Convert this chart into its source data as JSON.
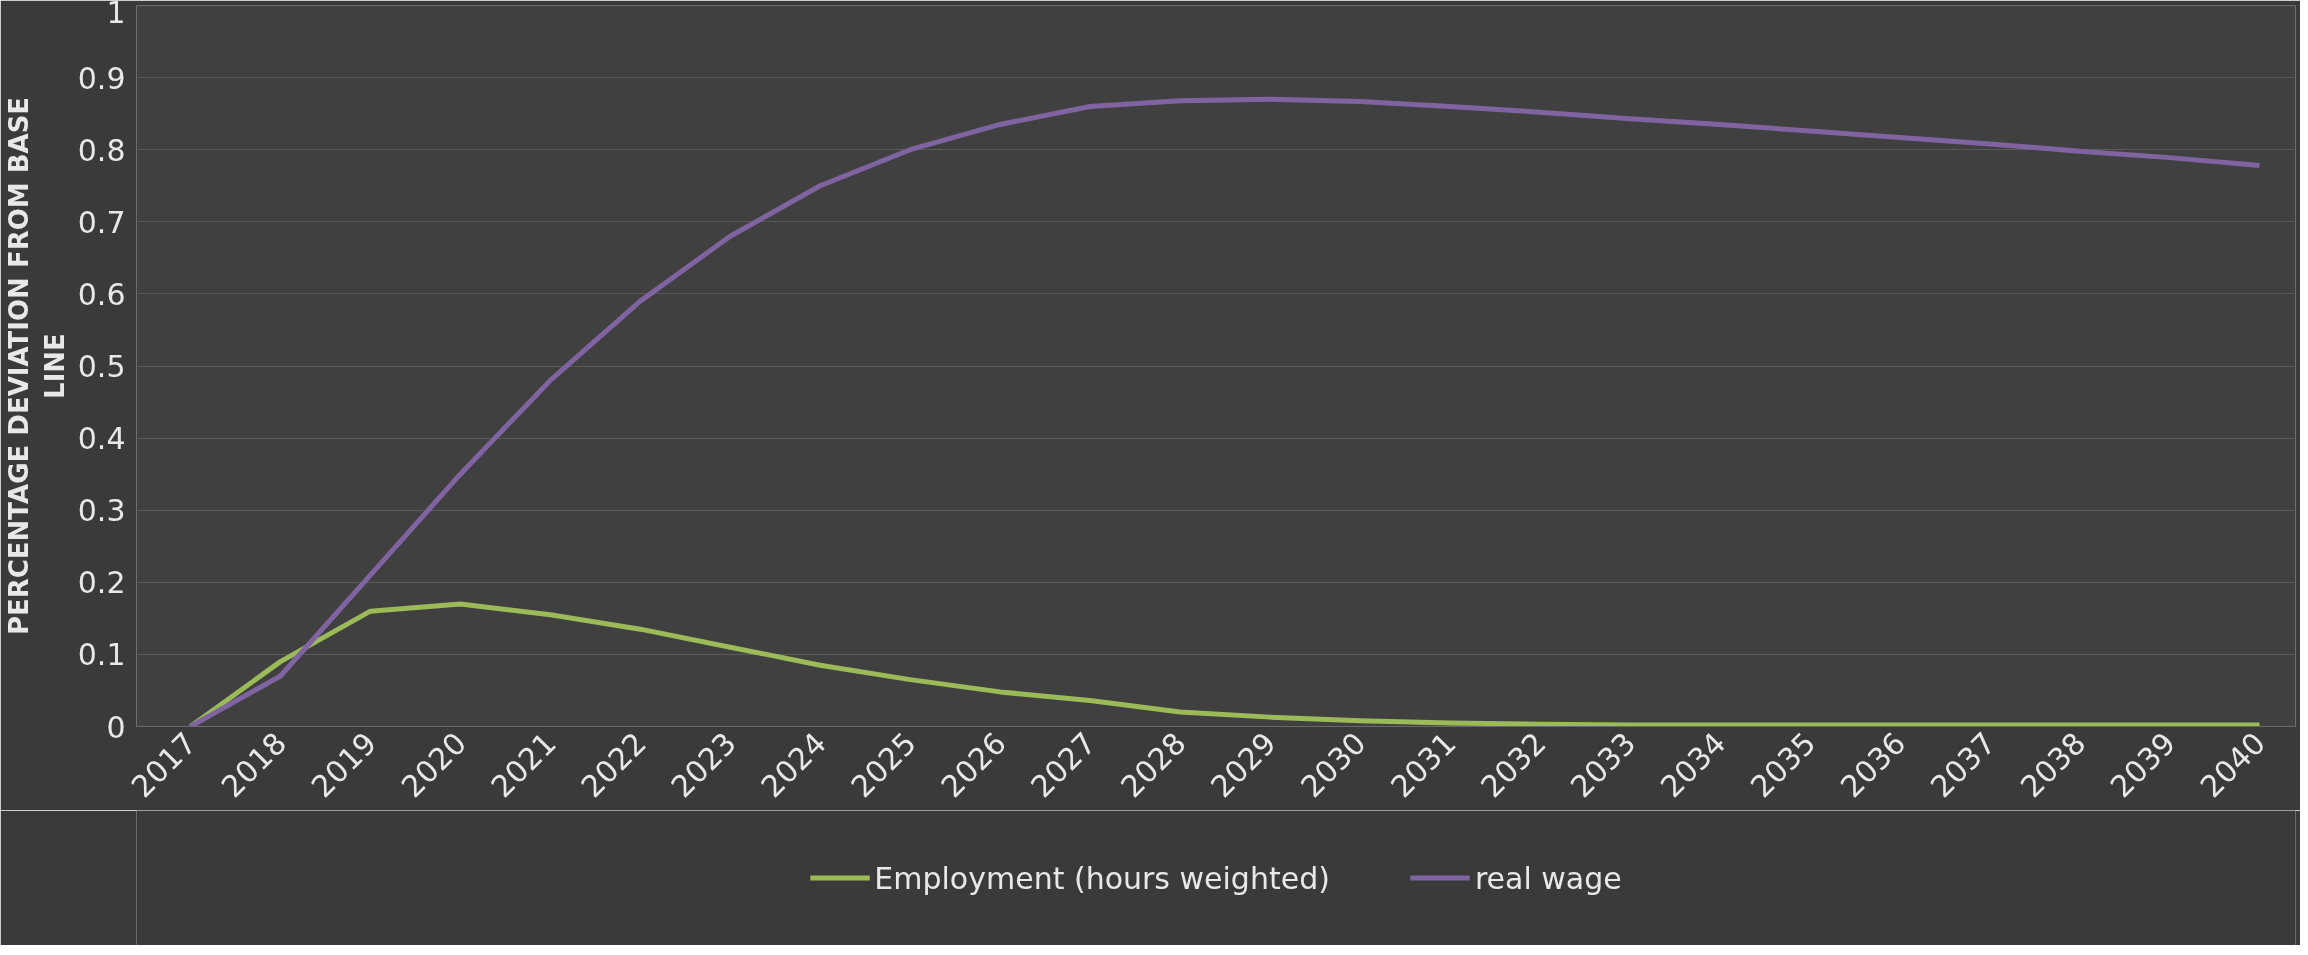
{
  "chart_data": {
    "type": "line",
    "ylabel": "PERCENTAGE DEVIATION FROM BASE LINE",
    "categories": [
      "2017",
      "2018",
      "2019",
      "2020",
      "2021",
      "2022",
      "2023",
      "2024",
      "2025",
      "2026",
      "2027",
      "2028",
      "2029",
      "2030",
      "2031",
      "2032",
      "2033",
      "2034",
      "2035",
      "2036",
      "2037",
      "2038",
      "2039",
      "2040"
    ],
    "series": [
      {
        "name": "Employment (hours weighted)",
        "color": "#9bbb59",
        "values": [
          0,
          0.09,
          0.16,
          0.17,
          0.155,
          0.135,
          0.11,
          0.085,
          0.065,
          0.048,
          0.036,
          0.02,
          0.013,
          0.008,
          0.005,
          0.003,
          0.002,
          0.002,
          0.002,
          0.002,
          0.002,
          0.002,
          0.002,
          0.002
        ]
      },
      {
        "name": "real wage",
        "color": "#8064a2",
        "values": [
          0,
          0.07,
          0.21,
          0.35,
          0.48,
          0.59,
          0.68,
          0.75,
          0.8,
          0.835,
          0.86,
          0.868,
          0.87,
          0.867,
          0.86,
          0.852,
          0.843,
          0.835,
          0.826,
          0.817,
          0.808,
          0.798,
          0.789,
          0.778
        ]
      }
    ],
    "ylim": [
      0,
      1
    ],
    "yticks": [
      0,
      0.1,
      0.2,
      0.3,
      0.4,
      0.5,
      0.6,
      0.7,
      0.8,
      0.9,
      1
    ],
    "grid": "y",
    "legend": "bottom",
    "marker": "none",
    "line_style": "solid"
  }
}
